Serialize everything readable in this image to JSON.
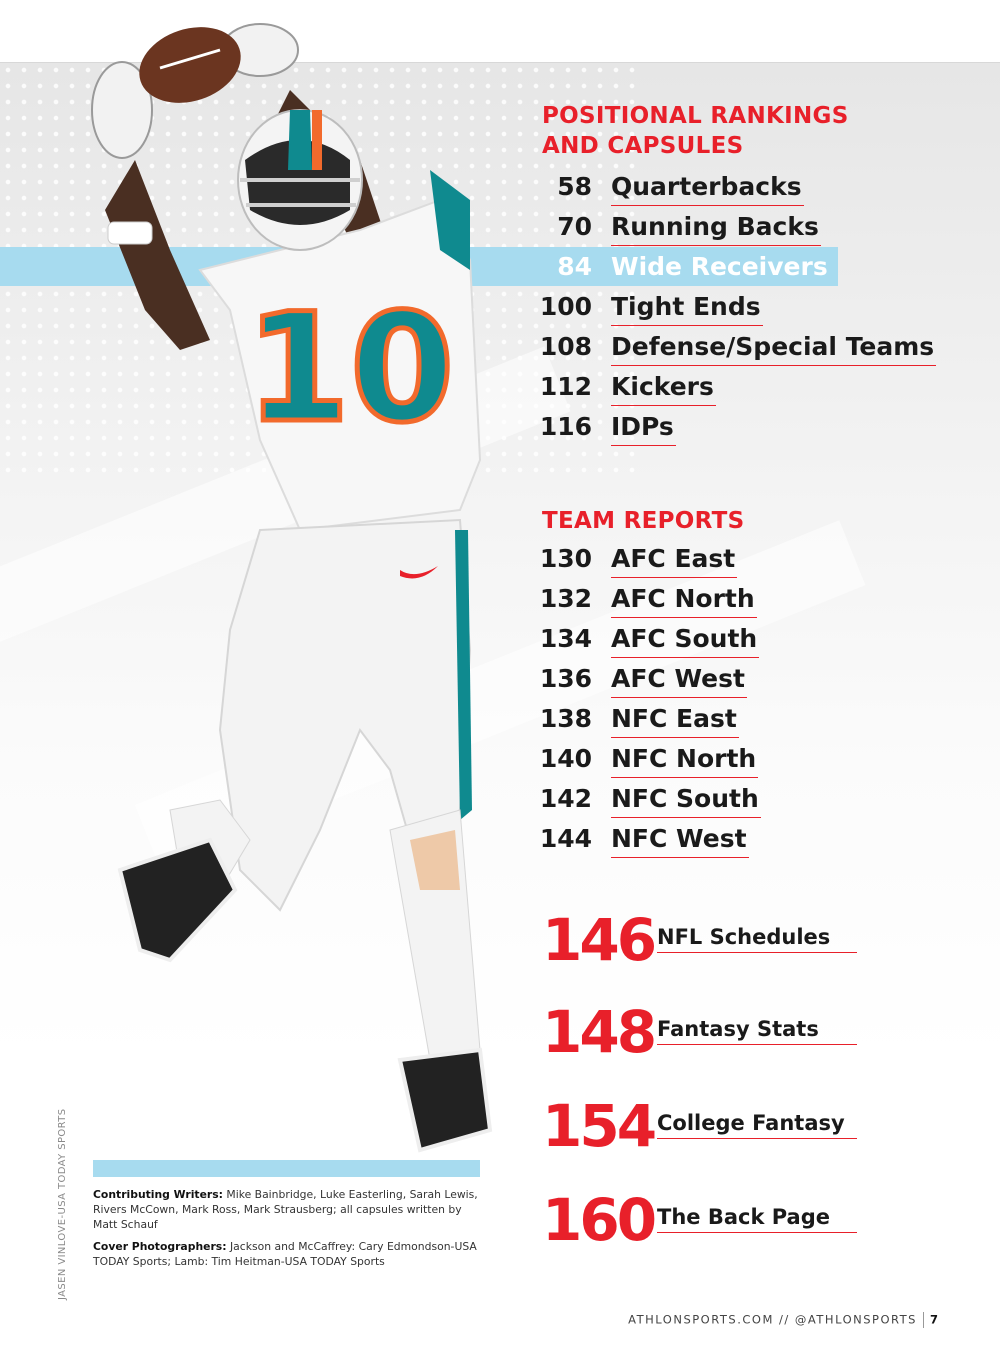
{
  "sections": {
    "positional": {
      "title_line1": "POSITIONAL RANKINGS",
      "title_line2": "AND CAPSULES",
      "items": [
        {
          "page": "58",
          "label": "Quarterbacks"
        },
        {
          "page": "70",
          "label": "Running Backs"
        },
        {
          "page": "84",
          "label": "Wide Receivers"
        },
        {
          "page": "100",
          "label": "Tight Ends"
        },
        {
          "page": "108",
          "label": "Defense/Special Teams"
        },
        {
          "page": "112",
          "label": "Kickers"
        },
        {
          "page": "116",
          "label": "IDPs"
        }
      ]
    },
    "team": {
      "title": "TEAM REPORTS",
      "items": [
        {
          "page": "130",
          "label": "AFC East"
        },
        {
          "page": "132",
          "label": "AFC North"
        },
        {
          "page": "134",
          "label": "AFC South"
        },
        {
          "page": "136",
          "label": "AFC West"
        },
        {
          "page": "138",
          "label": "NFC East"
        },
        {
          "page": "140",
          "label": "NFC North"
        },
        {
          "page": "142",
          "label": "NFC South"
        },
        {
          "page": "144",
          "label": "NFC West"
        }
      ]
    },
    "features": [
      {
        "page": "146",
        "label": "NFL Schedules"
      },
      {
        "page": "148",
        "label": "Fantasy Stats"
      },
      {
        "page": "154",
        "label": "College Fantasy"
      },
      {
        "page": "160",
        "label": "The Back Page"
      }
    ]
  },
  "photo_credit": "JASEN VINLOVE-USA TODAY SPORTS",
  "jersey_number": "10",
  "credits": {
    "writers_label": "Contributing Writers:",
    "writers_text": "Mike Bainbridge, Luke Easterling, Sarah Lewis, Rivers McCown, Mark Ross, Mark Strausberg; all capsules written by Matt Schauf",
    "photographers_label": "Cover Photographers:",
    "photographers_text": "Jackson and McCaffrey: Cary Edmondson-USA TODAY Sports; Lamb: Tim Heitman-USA TODAY Sports"
  },
  "footer": {
    "site": "ATHLONSPORTS.COM // @ATHLONSPORTS",
    "page_number": "7"
  },
  "colors": {
    "accent_red": "#e8202a",
    "highlight_blue": "#a7dbef",
    "jersey_teal": "#0f8a8f",
    "jersey_orange": "#f26a2c"
  }
}
